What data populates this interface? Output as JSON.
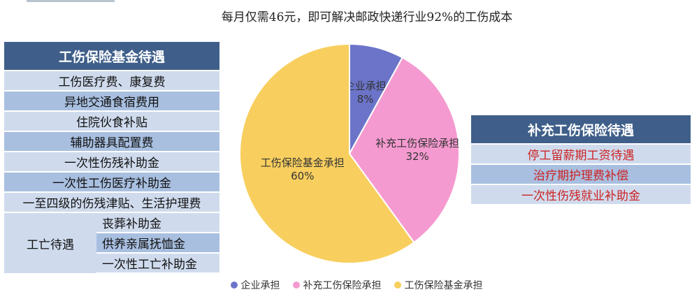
{
  "title": "每月仅需46元，即可解决邮政快递行业92%的工伤成本",
  "left_table": {
    "header": "工伤保险基金待遇",
    "rows": [
      "工伤医疗费、康复费",
      "异地交通食宿费用",
      "住院伙食补贴",
      "辅助器具配置费",
      "一次性伤残补助金",
      "一次性工伤医疗补助金",
      "一至四级的伤残津贴、生活护理费"
    ],
    "group": {
      "label": "工亡待遇",
      "items": [
        "丧葬补助金",
        "供养亲属抚恤金",
        "一次性工亡补助金"
      ]
    }
  },
  "right_table": {
    "header": "补充工伤保险待遇",
    "rows": [
      "停工留薪期工资待遇",
      "治疗期护理费补偿",
      "一次性伤残就业补助金"
    ]
  },
  "chart_data": {
    "type": "pie",
    "title": "每月仅需46元，即可解决邮政快递行业92%的工伤成本",
    "slices": [
      {
        "label": "企业承担",
        "value": 8,
        "display": "8%",
        "color": "#6b74c8"
      },
      {
        "label": "补充工伤保险承担",
        "value": 32,
        "display": "32%",
        "color": "#f59ad0"
      },
      {
        "label": "工伤保险基金承担",
        "value": 60,
        "display": "60%",
        "color": "#f8cf5e"
      }
    ],
    "legend_position": "bottom"
  }
}
